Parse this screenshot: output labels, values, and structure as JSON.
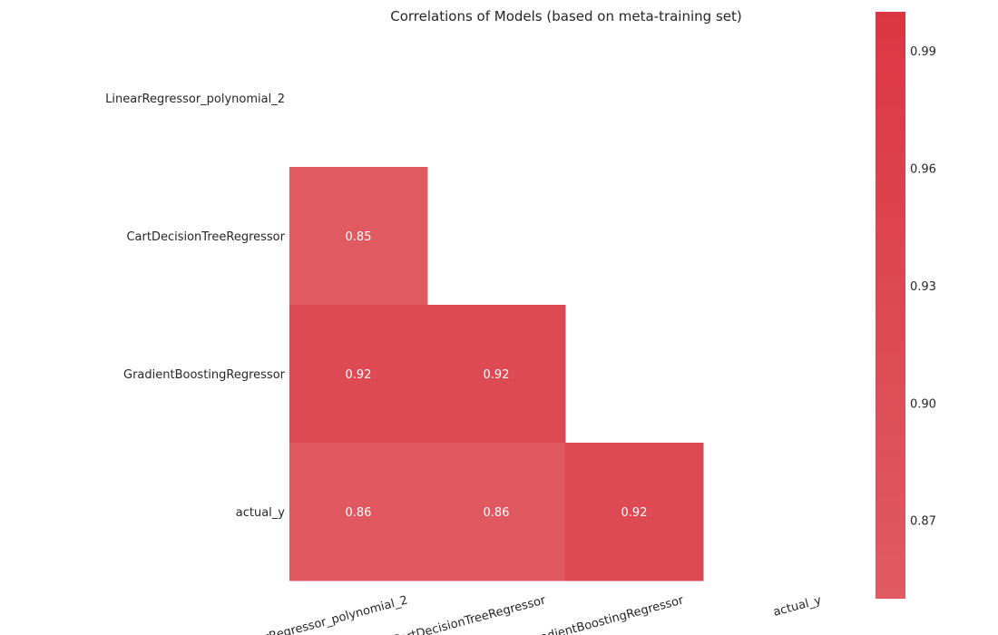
{
  "chart_data": {
    "type": "heatmap",
    "title": "Correlations of Models (based on meta-training set)",
    "labels": [
      "LinearRegressor_polynomial_2",
      "CartDecisionTreeRegressor",
      "GradientBoostingRegressor",
      "actual_y"
    ],
    "cells": [
      {
        "row": 1,
        "col": 0,
        "value": 0.85,
        "label": "0.85"
      },
      {
        "row": 2,
        "col": 0,
        "value": 0.92,
        "label": "0.92"
      },
      {
        "row": 2,
        "col": 1,
        "value": 0.92,
        "label": "0.92"
      },
      {
        "row": 3,
        "col": 0,
        "value": 0.86,
        "label": "0.86"
      },
      {
        "row": 3,
        "col": 1,
        "value": 0.86,
        "label": "0.86"
      },
      {
        "row": 3,
        "col": 2,
        "value": 0.92,
        "label": "0.92"
      }
    ],
    "mask": "upper-triangle-and-diagonal",
    "colorbar": {
      "range": [
        0.85,
        1.0
      ],
      "ticks": [
        0.87,
        0.9,
        0.93,
        0.96,
        0.99
      ],
      "tick_labels": [
        "0.87",
        "0.90",
        "0.93",
        "0.96",
        "0.99"
      ],
      "color_low": "#e05a62",
      "color_high": "#db3743"
    },
    "grid": false,
    "legend": "colorbar-right"
  }
}
